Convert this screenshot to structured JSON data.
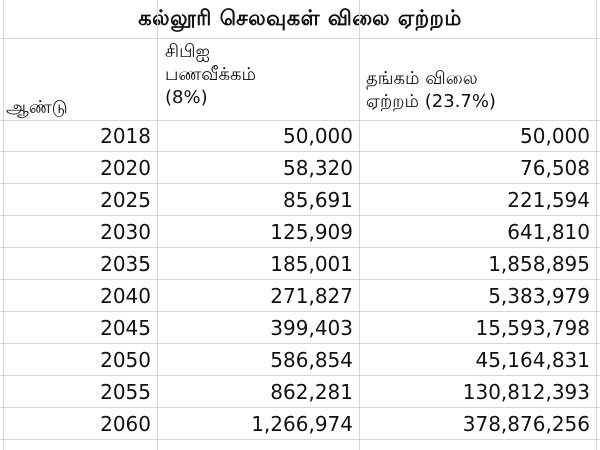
{
  "title": "கல்லூரி செலவுகள் விலை ஏற்றம்",
  "headers": {
    "year": "ஆண்டு",
    "cpi": [
      "சிபிஐ",
      "பணவீக்கம்",
      "(8%)"
    ],
    "gold": [
      "தங்கம் விலை",
      "ஏற்றம் (23.7%)"
    ]
  },
  "rows": [
    {
      "year": "2018",
      "cpi": "50,000",
      "gold": "50,000"
    },
    {
      "year": "2020",
      "cpi": "58,320",
      "gold": "76,508"
    },
    {
      "year": "2025",
      "cpi": "85,691",
      "gold": "221,594"
    },
    {
      "year": "2030",
      "cpi": "125,909",
      "gold": "641,810"
    },
    {
      "year": "2035",
      "cpi": "185,001",
      "gold": "1,858,895"
    },
    {
      "year": "2040",
      "cpi": "271,827",
      "gold": "5,383,979"
    },
    {
      "year": "2045",
      "cpi": "399,403",
      "gold": "15,593,798"
    },
    {
      "year": "2050",
      "cpi": "586,854",
      "gold": "45,164,831"
    },
    {
      "year": "2055",
      "cpi": "862,281",
      "gold": "130,812,393"
    },
    {
      "year": "2060",
      "cpi": "1,266,974",
      "gold": "378,876,256"
    }
  ]
}
